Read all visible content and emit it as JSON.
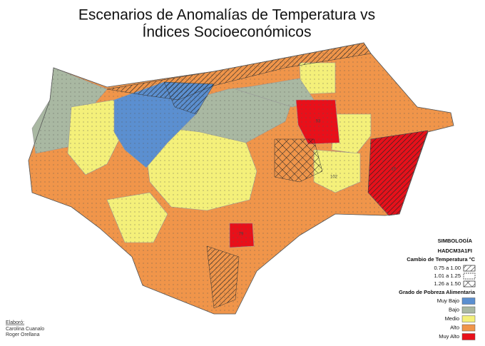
{
  "title": [
    "Escenarios de Anomalías de Temperatura vs",
    "Índices Socioeconómicos"
  ],
  "legend": {
    "heading": "SIMBOLOGÍA",
    "scenario": "HADCM3A1FI",
    "temperature_title": "Cambio de Temperatura °C",
    "temperature_classes": [
      "0.75 a 1.00",
      "1.01 a 1.25",
      "1.26 a 1.50"
    ],
    "poverty_title": "Grado de Pobreza Alimentaria",
    "poverty_classes": [
      {
        "label": "Muy Bajo",
        "color": "#5b8fd0"
      },
      {
        "label": "Bajo",
        "color": "#a9b8a2"
      },
      {
        "label": "Medio",
        "color": "#f4f07a"
      },
      {
        "label": "Alto",
        "color": "#f0954a"
      },
      {
        "label": "Muy Alto",
        "color": "#e8101a"
      }
    ]
  },
  "credits": [
    "Elaboró:",
    "Carolina Cuanalo",
    "Roger Orellana"
  ],
  "map_labels": [
    "93",
    "16",
    "79",
    "102"
  ]
}
